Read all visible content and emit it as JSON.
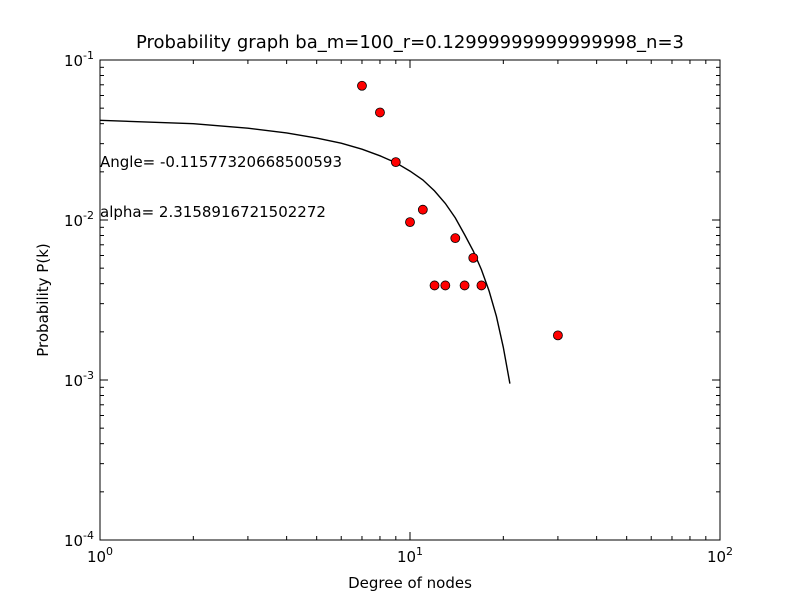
{
  "chart_data": {
    "type": "scatter",
    "title": "Probability graph ba_m=100_r=0.12999999999999998_n=3",
    "xlabel": "Degree of nodes",
    "ylabel": "Probability P(k)",
    "xscale": "log",
    "yscale": "log",
    "xlim": [
      1,
      100
    ],
    "ylim": [
      0.0001,
      0.1
    ],
    "grid": false,
    "x_ticks": [
      {
        "value": 1,
        "base": "10",
        "exp": "0"
      },
      {
        "value": 10,
        "base": "10",
        "exp": "1"
      },
      {
        "value": 100,
        "base": "10",
        "exp": "2"
      }
    ],
    "y_ticks": [
      {
        "value": 0.0001,
        "base": "10",
        "exp": "-4"
      },
      {
        "value": 0.001,
        "base": "10",
        "exp": "-3"
      },
      {
        "value": 0.01,
        "base": "10",
        "exp": "-2"
      },
      {
        "value": 0.1,
        "base": "10",
        "exp": "-1"
      }
    ],
    "annotations": {
      "angle": "Angle= -0.11577320668500593",
      "alpha": "alpha= 2.3158916721502272"
    },
    "points": {
      "color": "#ff0000",
      "x": [
        7,
        8,
        9,
        10,
        11,
        12,
        13,
        14,
        15,
        16,
        17,
        30
      ],
      "y": [
        0.069,
        0.047,
        0.023,
        0.0097,
        0.0116,
        0.0039,
        0.0039,
        0.0077,
        0.0039,
        0.0058,
        0.0039,
        0.0019
      ]
    },
    "fit_line": {
      "color": "#000000",
      "x": [
        1,
        2,
        3,
        4,
        5,
        6,
        7,
        8,
        9,
        10,
        11,
        12,
        13,
        14,
        15,
        16,
        17,
        18,
        19,
        20,
        21
      ],
      "y": [
        0.042,
        0.04,
        0.0375,
        0.035,
        0.0325,
        0.0302,
        0.0277,
        0.0252,
        0.0228,
        0.0202,
        0.0178,
        0.0152,
        0.0127,
        0.0103,
        0.0081,
        0.0064,
        0.0049,
        0.0036,
        0.0025,
        0.0016,
        0.00095
      ]
    }
  }
}
